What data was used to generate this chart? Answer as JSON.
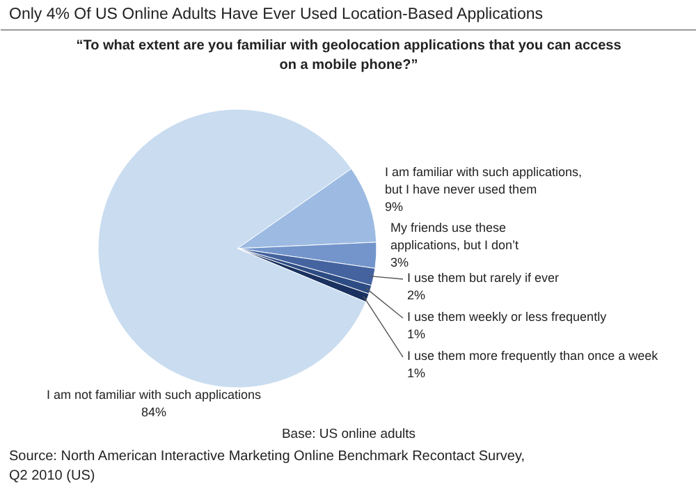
{
  "chart_data": {
    "type": "pie",
    "title": "Only 4% Of US Online Adults Have Ever Used Location-Based Applications",
    "subtitle": "“To what extent are you familiar with geolocation applications that you can access on a mobile phone?”",
    "categories": [
      "I am familiar with such applications,\nbut I have never used them",
      "My friends use these\napplications, but I don’t",
      "I use them but rarely if ever",
      "I use them weekly or less frequently",
      "I use them more frequently than once a week",
      "I am not familiar with such applications"
    ],
    "values": [
      9,
      3,
      2,
      1,
      1,
      84
    ],
    "value_labels": [
      "9%",
      "3%",
      "2%",
      "1%",
      "1%",
      "84%"
    ],
    "colors": [
      "#9dbbe2",
      "#7395cb",
      "#44639f",
      "#2e4c84",
      "#1b3260",
      "#c9dcf0"
    ],
    "annotations": [
      "Base: US online adults",
      "Source: North American Interactive Marketing Online Benchmark Recontact Survey,\nQ2 2010 (US)"
    ]
  }
}
